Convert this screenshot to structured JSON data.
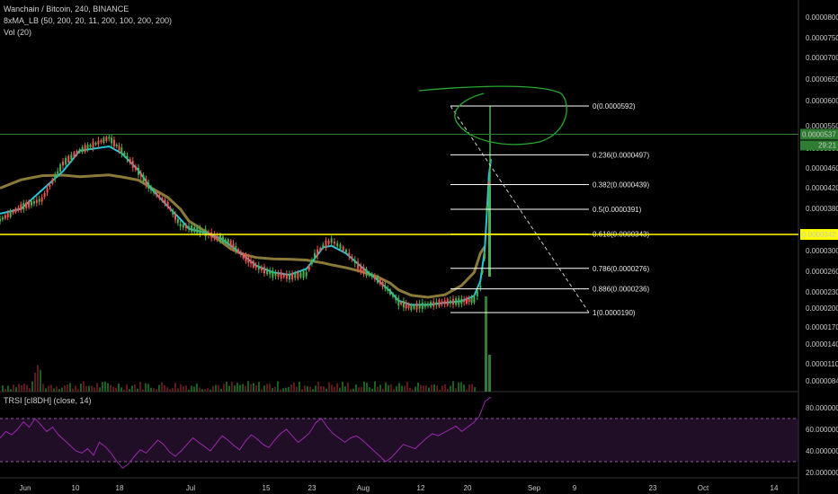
{
  "header": {
    "title": "Wanchain / Bitcoin, 240, BINANCE",
    "ma_label": "8xMA_LB (50, 200, 20, 11, 200, 100, 200, 200)",
    "vol_label": "Vol (20)"
  },
  "rsi_header": "TRSI [cI8DH] (close, 14)",
  "price_badges": {
    "current": "0.0000537",
    "countdown": "29:21",
    "level": "0.0000342"
  },
  "colors": {
    "background": "#000000",
    "fib_line": "#ffffff",
    "yellow_level": "#ffff00",
    "green_level": "#2e7d32",
    "rsi_line": "#9c27b0",
    "rsi_band": "#3b1a45",
    "ma_cyan": "#26c6da",
    "ma_olive": "#8a7a3a",
    "drawing_green": "#26a82e"
  },
  "chart_data": [
    {
      "type": "candlestick",
      "title": "Wanchain / Bitcoin, 240, BINANCE",
      "x_tick_labels": [
        "Jun",
        "10",
        "18",
        "Jul",
        "15",
        "23",
        "Aug",
        "12",
        "20",
        "Sep",
        "9",
        "23",
        "Oct",
        "14"
      ],
      "y_tick_labels": [
        "0.0000800",
        "0.0000750",
        "0.0000700",
        "0.0000650",
        "0.0000600",
        "0.0000550",
        "0.0000500",
        "0.0000460",
        "0.0000420",
        "0.0000380",
        "0.0000300",
        "0.0000260",
        "0.0000230",
        "0.0000200",
        "0.0000170",
        "0.0000140",
        "0.0000110",
        "0.0000084"
      ],
      "close_path_points": [
        [
          0,
          3.7e-05
        ],
        [
          10,
          3.95e-05
        ],
        [
          20,
          4.1e-05
        ],
        [
          30,
          4.8e-05
        ],
        [
          38,
          5.05e-05
        ],
        [
          52,
          5.3e-05
        ],
        [
          58,
          5.05e-05
        ],
        [
          66,
          4.65e-05
        ],
        [
          72,
          4.3e-05
        ],
        [
          80,
          4e-05
        ],
        [
          86,
          3.6e-05
        ],
        [
          90,
          3.55e-05
        ],
        [
          98,
          3.45e-05
        ],
        [
          105,
          3.35e-05
        ],
        [
          110,
          3.25e-05
        ],
        [
          116,
          3e-05
        ],
        [
          122,
          2.8e-05
        ],
        [
          130,
          2.65e-05
        ],
        [
          138,
          2.6e-05
        ],
        [
          146,
          2.65e-05
        ],
        [
          150,
          3e-05
        ],
        [
          154,
          3.2e-05
        ],
        [
          158,
          3.3e-05
        ],
        [
          165,
          3.1e-05
        ],
        [
          172,
          2.75e-05
        ],
        [
          180,
          2.55e-05
        ],
        [
          186,
          2.3e-05
        ],
        [
          190,
          2.1e-05
        ],
        [
          196,
          2e-05
        ],
        [
          204,
          2.05e-05
        ],
        [
          212,
          2.1e-05
        ],
        [
          220,
          2.12e-05
        ],
        [
          226,
          2.15e-05
        ],
        [
          229,
          2.4e-05
        ],
        [
          231,
          3e-05
        ],
        [
          232,
          3.91e-05
        ],
        [
          233,
          4.4e-05
        ],
        [
          234,
          5.37e-05
        ]
      ],
      "fib_levels": [
        {
          "ratio": 0,
          "value": 5.92e-05,
          "label": "0(0.0000592)"
        },
        {
          "ratio": 0.236,
          "value": 4.97e-05,
          "label": "0.236(0.0000497)"
        },
        {
          "ratio": 0.382,
          "value": 4.39e-05,
          "label": "0.382(0.0000439)"
        },
        {
          "ratio": 0.5,
          "value": 3.91e-05,
          "label": "0.5(0.0000391)"
        },
        {
          "ratio": 0.618,
          "value": 3.43e-05,
          "label": "0.618(0.0000343)"
        },
        {
          "ratio": 0.786,
          "value": 2.76e-05,
          "label": "0.786(0.0000276)"
        },
        {
          "ratio": 0.886,
          "value": 2.36e-05,
          "label": "0.886(0.0000236)"
        },
        {
          "ratio": 1,
          "value": 1.9e-05,
          "label": "1(0.0000190)"
        }
      ],
      "current_price": 5.37e-05,
      "horizontal_level": 3.42e-05
    },
    {
      "type": "line",
      "title": "TRSI [cI8DH] (close, 14)",
      "y_tick_labels": [
        "80.000000",
        "60.000000",
        "40.000000",
        "20.000000"
      ],
      "band": [
        30,
        70
      ],
      "ylim": [
        15,
        95
      ],
      "values": [
        52,
        58,
        55,
        60,
        67,
        62,
        70,
        64,
        58,
        62,
        55,
        50,
        45,
        40,
        38,
        42,
        36,
        48,
        44,
        38,
        30,
        24,
        28,
        35,
        41,
        38,
        44,
        50,
        46,
        39,
        35,
        40,
        46,
        52,
        48,
        44,
        40,
        47,
        54,
        50,
        45,
        41,
        49,
        55,
        51,
        46,
        43,
        50,
        56,
        60,
        54,
        48,
        52,
        57,
        66,
        70,
        62,
        56,
        52,
        48,
        52,
        54,
        50,
        45,
        40,
        35,
        30,
        34,
        40,
        46,
        44,
        42,
        47,
        52,
        56,
        54,
        57,
        60,
        63,
        58,
        62,
        66,
        72,
        86,
        90
      ]
    }
  ]
}
